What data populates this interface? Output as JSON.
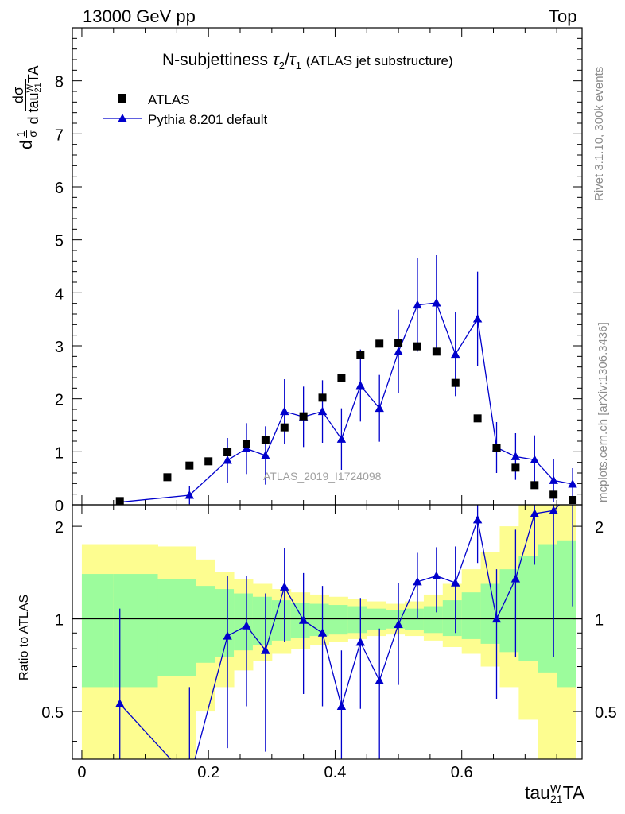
{
  "header": {
    "left": "13000 GeV pp",
    "right": "Top"
  },
  "title": {
    "main": "N-subjettiness",
    "t2": "τ",
    "t2sub": "2",
    "slash": "/",
    "t1": "τ",
    "t1sub": "1",
    "paren": "(ATLAS jet substructure)"
  },
  "side": {
    "rivet": "Rivet 3.1.10,  300k events",
    "mcplots": "mcplots.cern.ch [arXiv:1306.3436]"
  },
  "watermark": "ATLAS_2019_I1724098",
  "ylabel_main": {
    "d": "d",
    "sigma": "σ",
    "one": "1",
    "dsigma": "dσ",
    "dtau": "d tau",
    "sup": "W",
    "sub": "21",
    "ta": "TA"
  },
  "ylabel_ratio": "Ratio to ATLAS",
  "xlabel": {
    "tau": "tau",
    "sup": "W",
    "sub": "21",
    "ta": "TA"
  },
  "legend": {
    "data_label": "ATLAS",
    "mc_label": "Pythia 8.201 default"
  },
  "colors": {
    "mc": "#0000cc",
    "data": "#000000",
    "band_inner": "#9cfc9c",
    "band_outer": "#fdfd90"
  },
  "chart_data": [
    {
      "type": "scatter",
      "panel": "main",
      "xlim": [
        -0.015,
        0.79
      ],
      "ylim": [
        0,
        9
      ],
      "x_ticks": [
        0,
        0.2,
        0.4,
        0.6
      ],
      "y_ticks": [
        0,
        1,
        2,
        3,
        4,
        5,
        6,
        7,
        8
      ],
      "y_tick_labels": [
        "0",
        "1",
        "2",
        "3",
        "4",
        "5",
        "6",
        "7",
        "8"
      ],
      "series": [
        {
          "name": "ATLAS",
          "marker": "square",
          "x": [
            0.06,
            0.135,
            0.17,
            0.2,
            0.23,
            0.26,
            0.29,
            0.32,
            0.35,
            0.38,
            0.41,
            0.44,
            0.47,
            0.5,
            0.53,
            0.56,
            0.59,
            0.625,
            0.655,
            0.685,
            0.715,
            0.745,
            0.775
          ],
          "y": [
            0.07,
            0.52,
            0.74,
            0.82,
            0.99,
            1.14,
            1.23,
            1.46,
            1.67,
            2.02,
            2.39,
            2.83,
            3.04,
            3.05,
            2.99,
            2.89,
            2.3,
            1.63,
            1.08,
            0.7,
            0.37,
            0.19,
            0.09
          ]
        },
        {
          "name": "Pythia 8.201 default",
          "marker": "triangle",
          "x": [
            0.06,
            0.17,
            0.23,
            0.26,
            0.29,
            0.32,
            0.35,
            0.38,
            0.41,
            0.44,
            0.47,
            0.5,
            0.53,
            0.56,
            0.59,
            0.625,
            0.655,
            0.685,
            0.715,
            0.745,
            0.775
          ],
          "y": [
            0.05,
            0.18,
            0.84,
            1.06,
            0.93,
            1.76,
            1.66,
            1.76,
            1.24,
            2.25,
            1.82,
            2.89,
            3.77,
            3.81,
            2.84,
            3.51,
            1.08,
            0.91,
            0.85,
            0.46,
            0.39
          ],
          "yerr": [
            0.05,
            0.17,
            0.42,
            0.48,
            0.55,
            0.61,
            0.57,
            0.59,
            0.58,
            0.68,
            0.63,
            0.79,
            0.88,
            0.9,
            0.79,
            0.89,
            0.48,
            0.44,
            0.46,
            0.4,
            0.3
          ]
        }
      ]
    },
    {
      "type": "line",
      "panel": "ratio",
      "ylabel": "Ratio to ATLAS",
      "xlabel": "tau_21^W TA",
      "xlim": [
        -0.015,
        0.79
      ],
      "ylim": [
        0.35,
        2.35
      ],
      "x_ticks": [
        0,
        0.2,
        0.4,
        0.6
      ],
      "x_tick_labels": [
        "0",
        "0.2",
        "0.4",
        "0.6"
      ],
      "y_ticks": [
        0.5,
        1,
        2
      ],
      "y_tick_labels": [
        "0.5",
        "1",
        "2"
      ],
      "bands": {
        "edges": [
          0.0,
          0.05,
          0.12,
          0.15,
          0.18,
          0.21,
          0.24,
          0.27,
          0.3,
          0.33,
          0.36,
          0.39,
          0.42,
          0.45,
          0.48,
          0.51,
          0.54,
          0.57,
          0.6,
          0.63,
          0.66,
          0.69,
          0.72,
          0.75,
          0.78
        ],
        "inner_lo": [
          0.6,
          0.6,
          0.65,
          0.65,
          0.72,
          0.75,
          0.79,
          0.82,
          0.85,
          0.87,
          0.88,
          0.89,
          0.9,
          0.92,
          0.93,
          0.92,
          0.9,
          0.88,
          0.86,
          0.83,
          0.78,
          0.73,
          0.67,
          0.6
        ],
        "inner_hi": [
          1.4,
          1.4,
          1.35,
          1.35,
          1.28,
          1.25,
          1.21,
          1.18,
          1.15,
          1.13,
          1.12,
          1.11,
          1.1,
          1.08,
          1.07,
          1.08,
          1.1,
          1.15,
          1.22,
          1.3,
          1.45,
          1.6,
          1.75,
          1.8
        ],
        "outer_lo": [
          0.3,
          0.3,
          0.3,
          0.3,
          0.5,
          0.6,
          0.68,
          0.73,
          0.77,
          0.8,
          0.82,
          0.84,
          0.86,
          0.88,
          0.89,
          0.88,
          0.85,
          0.81,
          0.77,
          0.7,
          0.6,
          0.47,
          0.3,
          0.3
        ],
        "outer_hi": [
          1.75,
          1.75,
          1.72,
          1.72,
          1.56,
          1.42,
          1.35,
          1.3,
          1.25,
          1.22,
          1.2,
          1.18,
          1.16,
          1.14,
          1.12,
          1.14,
          1.2,
          1.3,
          1.45,
          1.65,
          2.0,
          2.35,
          2.35,
          2.35
        ]
      },
      "series": [
        {
          "name": "Pythia 8.201 default",
          "x": [
            0.06,
            0.17,
            0.23,
            0.26,
            0.29,
            0.32,
            0.35,
            0.38,
            0.41,
            0.44,
            0.47,
            0.5,
            0.53,
            0.56,
            0.59,
            0.625,
            0.655,
            0.685,
            0.715,
            0.745,
            0.775
          ],
          "y": [
            0.53,
            0.3,
            0.88,
            0.95,
            0.79,
            1.27,
            0.99,
            0.9,
            0.52,
            0.84,
            0.63,
            0.96,
            1.32,
            1.38,
            1.31,
            2.1,
            1.0,
            1.35,
            2.2,
            2.25,
            2.6
          ],
          "yerr": [
            0.55,
            0.3,
            0.5,
            0.43,
            0.42,
            0.43,
            0.42,
            0.38,
            0.27,
            0.33,
            0.3,
            0.35,
            0.32,
            0.33,
            0.41,
            0.58,
            0.45,
            0.6,
            0.7,
            1.5,
            1.5
          ]
        }
      ]
    }
  ]
}
